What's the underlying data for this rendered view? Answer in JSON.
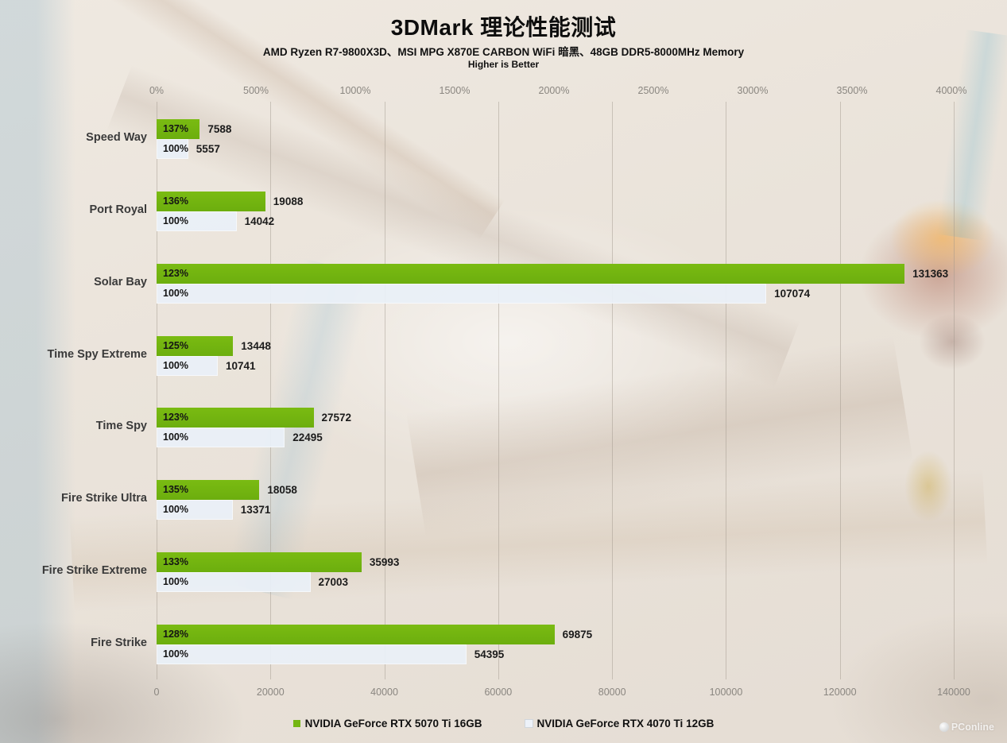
{
  "title": "3DMark 理论性能测试",
  "subtitle": "AMD Ryzen R7-9800X3D、MSI MPG X870E CARBON WiFi 暗黑、48GB DDR5-8000MHz Memory",
  "note": "Higher is Better",
  "watermark": "PConline",
  "colors": {
    "series1_green": "#74b612",
    "series2_white": "#e9f0f8",
    "grid": "#9e948a",
    "axis_text": "#8a8680",
    "category_text": "#3a3a3a"
  },
  "legend": [
    {
      "label": "NVIDIA GeForce RTX 5070 Ti 16GB",
      "swatch": "green"
    },
    {
      "label": "NVIDIA GeForce RTX 4070 Ti 12GB",
      "swatch": "white"
    }
  ],
  "chart_data": {
    "type": "bar",
    "orientation": "horizontal",
    "title": "3DMark 理论性能测试",
    "categories": [
      "Speed Way",
      "Port Royal",
      "Solar Bay",
      "Time Spy Extreme",
      "Time Spy",
      "Fire Strike Ultra",
      "Fire Strike Extreme",
      "Fire Strike"
    ],
    "series": [
      {
        "name": "NVIDIA GeForce RTX 5070 Ti 16GB",
        "values": [
          7588,
          19088,
          131363,
          13448,
          27572,
          18058,
          35993,
          69875
        ],
        "percent_labels": [
          "137%",
          "136%",
          "123%",
          "125%",
          "123%",
          "135%",
          "133%",
          "128%"
        ]
      },
      {
        "name": "NVIDIA GeForce RTX 4070 Ti 12GB",
        "values": [
          5557,
          14042,
          107074,
          10741,
          22495,
          13371,
          27003,
          54395
        ],
        "percent_labels": [
          "100%",
          "100%",
          "100%",
          "100%",
          "100%",
          "100%",
          "100%",
          "100%"
        ]
      }
    ],
    "top_axis": {
      "ticks": [
        "0%",
        "500%",
        "1000%",
        "1500%",
        "2000%",
        "2500%",
        "3000%",
        "3500%",
        "4000%"
      ],
      "min": 0,
      "max_percent": 4000
    },
    "bottom_axis": {
      "ticks": [
        "0",
        "20000",
        "40000",
        "60000",
        "80000",
        "100000",
        "120000",
        "140000"
      ],
      "min": 0,
      "max": 140000
    },
    "grid": true,
    "legend_position": "bottom"
  }
}
